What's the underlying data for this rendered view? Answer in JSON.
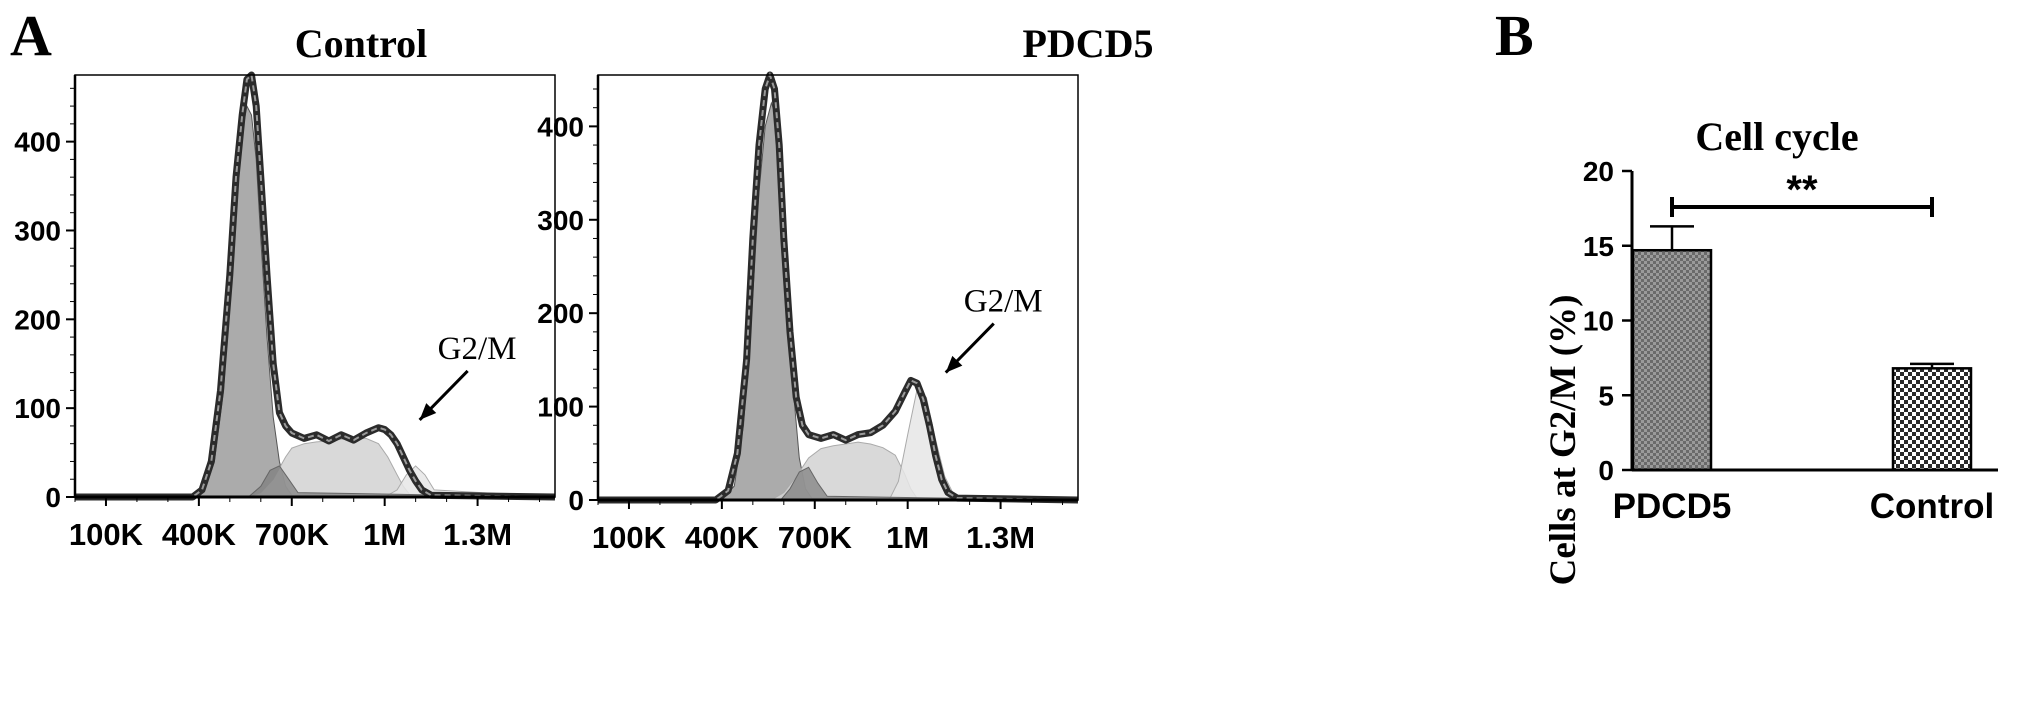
{
  "panels": {
    "A": "A",
    "B": "B"
  },
  "chart_data": [
    {
      "type": "area",
      "title": "Control",
      "xlabel": "",
      "ylabel": "",
      "xlim": [
        0,
        1550000
      ],
      "ylim": [
        0,
        475
      ],
      "yticks": [
        0,
        100,
        200,
        300,
        400
      ],
      "yticklabels": [
        "0",
        "100",
        "200",
        "300",
        "400"
      ],
      "xticks": [
        100000,
        400000,
        700000,
        1000000,
        1300000
      ],
      "xticklabels": [
        "100K",
        "400K",
        "700K",
        "1M",
        "1.3M"
      ],
      "annotation": {
        "text": "G2/M",
        "x": 1100000,
        "y": 80
      },
      "series": [
        {
          "name": "",
          "x": [
            0,
            380000,
            410000,
            440000,
            470000,
            500000,
            520000,
            540000,
            555000,
            570000,
            585000,
            600000,
            620000,
            640000,
            660000,
            680000,
            700000,
            740000,
            780000,
            820000,
            860000,
            900000,
            940000,
            980000,
            1000000,
            1020000,
            1040000,
            1060000,
            1080000,
            1100000,
            1120000,
            1150000,
            1550000
          ],
          "y": [
            0,
            0,
            8,
            40,
            120,
            250,
            360,
            430,
            470,
            475,
            440,
            360,
            250,
            150,
            95,
            80,
            72,
            66,
            70,
            63,
            70,
            64,
            72,
            78,
            76,
            70,
            60,
            45,
            30,
            18,
            8,
            2,
            0
          ]
        },
        {
          "name": "",
          "x": [
            0,
            380000,
            420000,
            450000,
            480000,
            500000,
            520000,
            540000,
            555000,
            570000,
            585000,
            600000,
            620000,
            640000,
            660000,
            680000,
            700000,
            1550000
          ],
          "y": [
            0,
            0,
            10,
            40,
            120,
            230,
            340,
            410,
            440,
            430,
            380,
            290,
            180,
            90,
            40,
            12,
            2,
            0
          ]
        },
        {
          "name": "",
          "x": [
            0,
            560000,
            600000,
            640000,
            680000,
            700000,
            740000,
            780000,
            820000,
            860000,
            900000,
            940000,
            980000,
            1010000,
            1040000,
            1060000,
            1080000,
            1550000
          ],
          "y": [
            0,
            0,
            5,
            20,
            45,
            55,
            60,
            62,
            63,
            65,
            66,
            66,
            60,
            45,
            25,
            12,
            3,
            0
          ]
        },
        {
          "name": "",
          "x": [
            0,
            1000000,
            1040000,
            1070000,
            1100000,
            1130000,
            1160000,
            1550000
          ],
          "y": [
            0,
            0,
            8,
            25,
            35,
            25,
            8,
            0
          ]
        },
        {
          "name": "",
          "x": [
            0,
            560000,
            600000,
            630000,
            660000,
            690000,
            720000,
            1550000
          ],
          "y": [
            0,
            0,
            12,
            30,
            35,
            20,
            5,
            0
          ]
        }
      ]
    },
    {
      "type": "area",
      "title": "PDCD5",
      "xlabel": "",
      "ylabel": "",
      "xlim": [
        0,
        1550000
      ],
      "ylim": [
        0,
        455
      ],
      "yticks": [
        0,
        100,
        200,
        300,
        400
      ],
      "yticklabels": [
        "0",
        "100",
        "200",
        "300",
        "400"
      ],
      "xticks": [
        100000,
        400000,
        700000,
        1000000,
        1300000
      ],
      "xticklabels": [
        "100K",
        "400K",
        "700K",
        "1M",
        "1.3M"
      ],
      "annotation": {
        "text": "G2/M",
        "x": 1110000,
        "y": 130
      },
      "series": [
        {
          "name": "",
          "x": [
            0,
            380000,
            420000,
            450000,
            480000,
            500000,
            520000,
            540000,
            555000,
            570000,
            585000,
            600000,
            620000,
            640000,
            660000,
            680000,
            720000,
            760000,
            800000,
            840000,
            880000,
            920000,
            960000,
            990000,
            1010000,
            1030000,
            1050000,
            1070000,
            1090000,
            1110000,
            1130000,
            1160000,
            1550000
          ],
          "y": [
            0,
            0,
            10,
            50,
            150,
            280,
            380,
            440,
            455,
            440,
            380,
            280,
            180,
            110,
            80,
            70,
            66,
            70,
            64,
            70,
            72,
            80,
            95,
            115,
            128,
            125,
            108,
            80,
            48,
            22,
            8,
            2,
            0
          ]
        },
        {
          "name": "",
          "x": [
            0,
            400000,
            440000,
            470000,
            500000,
            520000,
            540000,
            560000,
            575000,
            590000,
            610000,
            630000,
            650000,
            670000,
            690000,
            1550000
          ],
          "y": [
            0,
            0,
            15,
            80,
            220,
            330,
            400,
            425,
            410,
            350,
            230,
            120,
            45,
            12,
            2,
            0
          ]
        },
        {
          "name": "",
          "x": [
            0,
            560000,
            600000,
            640000,
            680000,
            720000,
            760000,
            800000,
            840000,
            880000,
            920000,
            960000,
            990000,
            1010000,
            1030000,
            1550000
          ],
          "y": [
            0,
            0,
            8,
            25,
            45,
            55,
            58,
            60,
            62,
            60,
            56,
            48,
            28,
            12,
            2,
            0
          ]
        },
        {
          "name": "",
          "x": [
            0,
            940000,
            970000,
            1000000,
            1030000,
            1060000,
            1090000,
            1120000,
            1150000,
            1550000
          ],
          "y": [
            0,
            0,
            20,
            70,
            118,
            110,
            65,
            25,
            5,
            0
          ]
        },
        {
          "name": "",
          "x": [
            0,
            590000,
            620000,
            650000,
            680000,
            710000,
            740000,
            1550000
          ],
          "y": [
            0,
            0,
            12,
            30,
            35,
            18,
            4,
            0
          ]
        }
      ]
    },
    {
      "type": "bar",
      "title": "Cell cycle",
      "xlabel": "",
      "ylabel": "Cells at G2/M (%)",
      "ylim": [
        0,
        20
      ],
      "yticks": [
        0,
        5,
        10,
        15,
        20
      ],
      "yticklabels": [
        "0",
        "5",
        "10",
        "15",
        "20"
      ],
      "categories": [
        "PDCD5",
        "Control"
      ],
      "values": [
        14.7,
        6.8
      ],
      "errors": [
        1.6,
        0.3
      ],
      "significance": "**"
    }
  ]
}
